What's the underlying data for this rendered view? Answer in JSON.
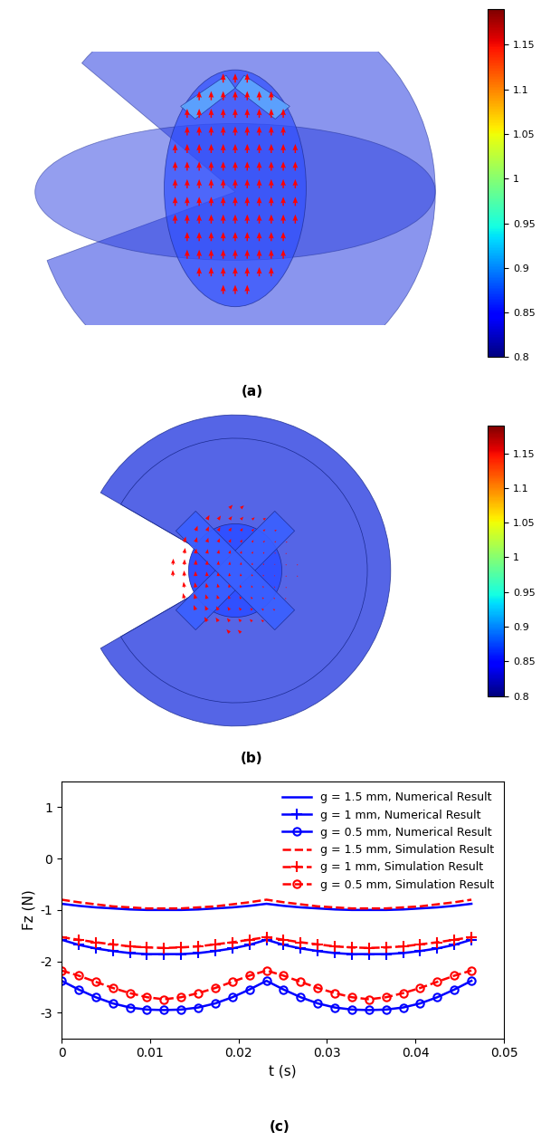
{
  "panels": [
    {
      "label": "(a)",
      "colorbar": {
        "range": [
          0.8,
          1.19
        ],
        "ticks": [
          0.8,
          0.85,
          0.9,
          0.95,
          1,
          1.05,
          1.1,
          1.15
        ]
      }
    },
    {
      "label": "(b)",
      "colorbar": {
        "range": [
          0.8,
          1.19
        ],
        "ticks": [
          0.8,
          0.85,
          0.9,
          0.95,
          1,
          1.05,
          1.1,
          1.15
        ]
      }
    }
  ],
  "chart_data": {
    "type": "line",
    "label": "(c)",
    "x_label": "t (s)",
    "y_label": "Fz (N)",
    "x": [
      0,
      0.00193,
      0.00386,
      0.00579,
      0.00772,
      0.00965,
      0.01158,
      0.01351,
      0.01544,
      0.01737,
      0.0193,
      0.02123,
      0.02316,
      0.02509,
      0.02702,
      0.02895,
      0.03088,
      0.03281,
      0.03474,
      0.03667,
      0.0386,
      0.04053,
      0.04246,
      0.04439,
      0.04632
    ],
    "xlim": [
      0,
      0.05
    ],
    "xticks": [
      0,
      0.01,
      0.02,
      0.03,
      0.04,
      0.05
    ],
    "ylim": [
      -3.5,
      1.5
    ],
    "yticks": [
      -3,
      -2,
      -1,
      0,
      1
    ],
    "legend": "upper right",
    "series": [
      {
        "name": "g = 1.5 mm, Numerical Result",
        "color": "#0000ff",
        "line_style": "solid",
        "marker": "none",
        "values": [
          -0.88,
          -0.92,
          -0.95,
          -0.97,
          -0.99,
          -1.0,
          -1.0,
          -1.0,
          -0.99,
          -0.97,
          -0.95,
          -0.92,
          -0.88,
          -0.92,
          -0.95,
          -0.97,
          -0.99,
          -1.0,
          -1.0,
          -1.0,
          -0.99,
          -0.97,
          -0.95,
          -0.92,
          -0.88
        ]
      },
      {
        "name": "g = 1 mm, Numerical Result",
        "color": "#0000ff",
        "line_style": "solid",
        "marker": "+",
        "values": [
          -1.58,
          -1.68,
          -1.75,
          -1.8,
          -1.84,
          -1.86,
          -1.86,
          -1.86,
          -1.84,
          -1.8,
          -1.75,
          -1.68,
          -1.58,
          -1.68,
          -1.75,
          -1.8,
          -1.84,
          -1.86,
          -1.86,
          -1.86,
          -1.84,
          -1.8,
          -1.75,
          -1.68,
          -1.58
        ]
      },
      {
        "name": "g = 0.5 mm, Numerical Result",
        "color": "#0000ff",
        "line_style": "solid",
        "marker": "o",
        "values": [
          -2.38,
          -2.55,
          -2.7,
          -2.82,
          -2.9,
          -2.94,
          -2.95,
          -2.94,
          -2.9,
          -2.82,
          -2.7,
          -2.55,
          -2.38,
          -2.55,
          -2.7,
          -2.82,
          -2.9,
          -2.94,
          -2.95,
          -2.94,
          -2.9,
          -2.82,
          -2.7,
          -2.55,
          -2.38
        ]
      },
      {
        "name": "g = 1.5 mm, Simulation Result",
        "color": "#ff0000",
        "line_style": "dashed",
        "marker": "none",
        "values": [
          -0.8,
          -0.85,
          -0.89,
          -0.93,
          -0.95,
          -0.97,
          -0.97,
          -0.97,
          -0.95,
          -0.93,
          -0.89,
          -0.85,
          -0.8,
          -0.85,
          -0.89,
          -0.93,
          -0.95,
          -0.97,
          -0.97,
          -0.97,
          -0.95,
          -0.93,
          -0.89,
          -0.85,
          -0.8
        ]
      },
      {
        "name": "g = 1 mm, Simulation Result",
        "color": "#ff0000",
        "line_style": "dashed",
        "marker": "+",
        "values": [
          -1.53,
          -1.58,
          -1.63,
          -1.67,
          -1.71,
          -1.73,
          -1.74,
          -1.73,
          -1.71,
          -1.67,
          -1.63,
          -1.58,
          -1.53,
          -1.58,
          -1.63,
          -1.67,
          -1.71,
          -1.73,
          -1.74,
          -1.73,
          -1.71,
          -1.67,
          -1.63,
          -1.58,
          -1.53
        ]
      },
      {
        "name": "g = 0.5 mm, Simulation Result",
        "color": "#ff0000",
        "line_style": "dashed",
        "marker": "o",
        "values": [
          -2.18,
          -2.28,
          -2.4,
          -2.52,
          -2.62,
          -2.7,
          -2.74,
          -2.7,
          -2.62,
          -2.52,
          -2.4,
          -2.28,
          -2.18,
          -2.28,
          -2.4,
          -2.52,
          -2.62,
          -2.7,
          -2.74,
          -2.7,
          -2.62,
          -2.52,
          -2.4,
          -2.28,
          -2.18
        ]
      }
    ]
  }
}
